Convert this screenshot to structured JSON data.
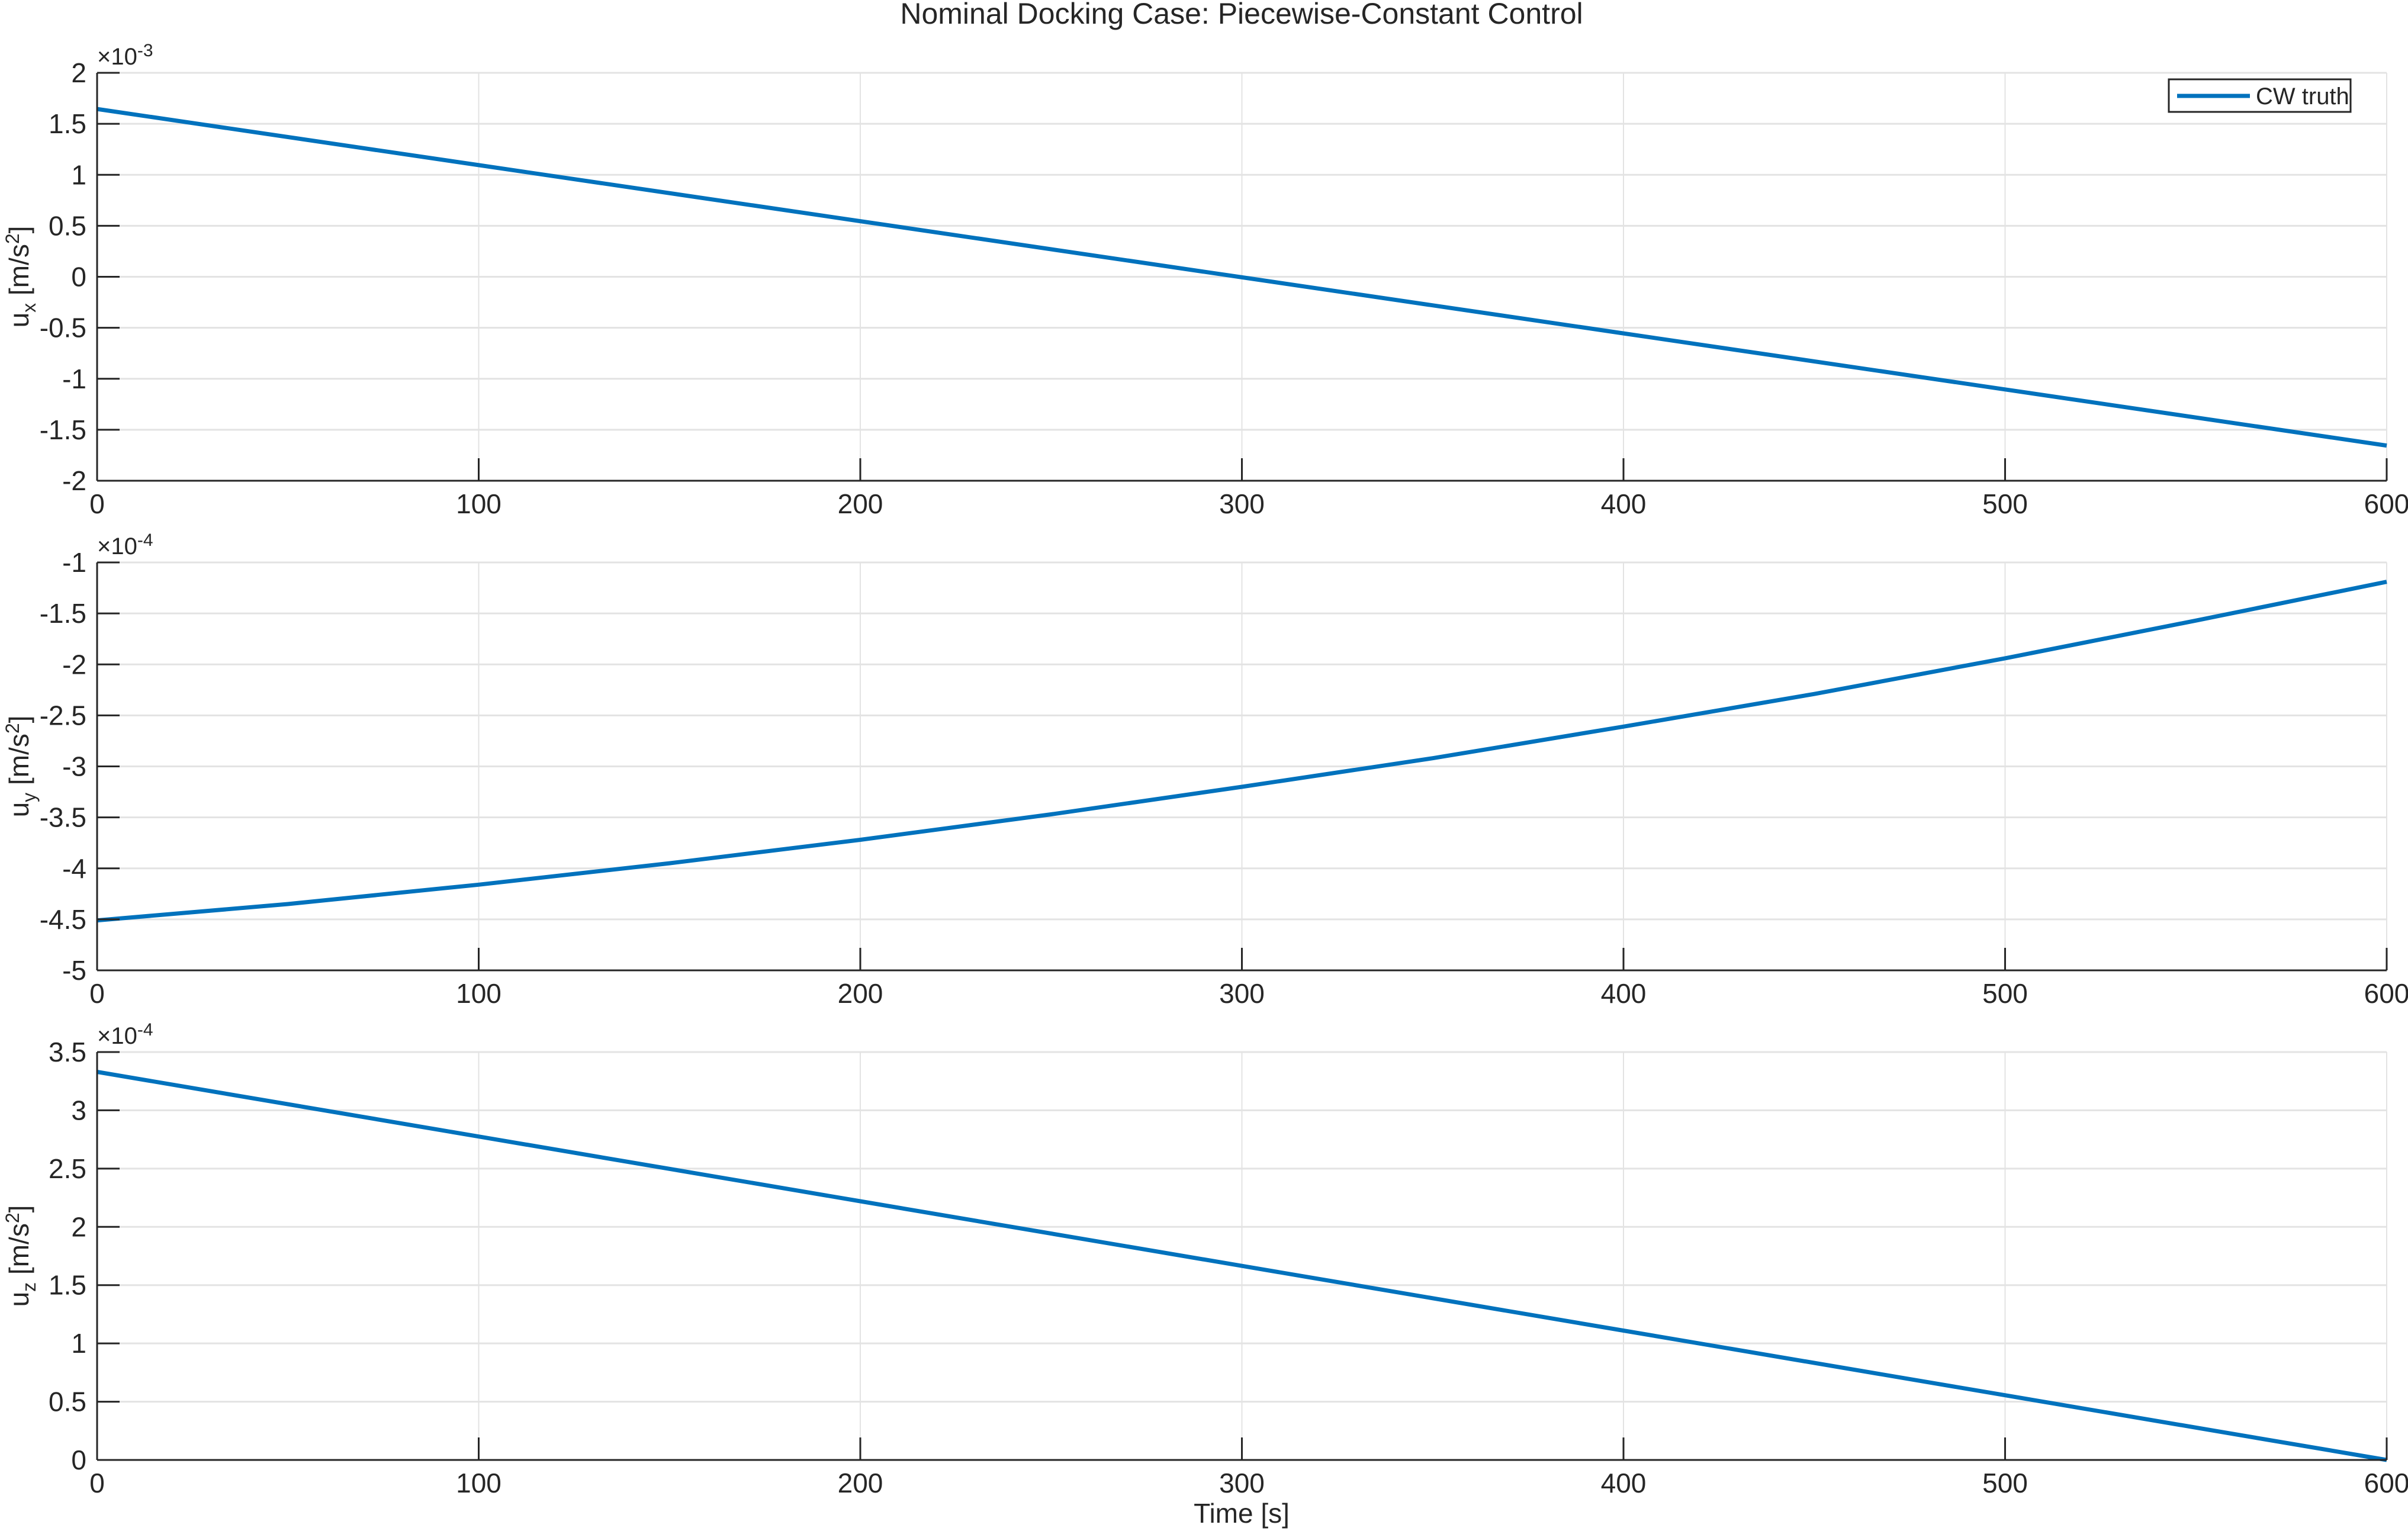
{
  "figure": {
    "title": "Nominal Docking Case: Piecewise-Constant Control",
    "xlabel": "Time [s]",
    "line_color": "#0072BD",
    "axis_color": "#262626",
    "grid_color": "#e3e3e3"
  },
  "chart_data": [
    {
      "type": "line",
      "title": "Nominal Docking Case: Piecewise-Constant Control",
      "xlabel": "",
      "ylabel_main": "u",
      "ylabel_sub": "x",
      "ylabel_unit": " [m/s",
      "ylabel_sup": "2",
      "ylabel_close": "]",
      "exponent_label": "×10",
      "exponent": "-3",
      "xlim": [
        0,
        600
      ],
      "ylim": [
        -2,
        2
      ],
      "xticks": [
        0,
        100,
        200,
        300,
        400,
        500,
        600
      ],
      "yticks": [
        -2,
        -1.5,
        -1,
        -0.5,
        0,
        0.5,
        1,
        1.5,
        2
      ],
      "ytick_labels": [
        "-2",
        "-1.5",
        "-1",
        "-0.5",
        "0",
        "0.5",
        "1",
        "1.5",
        "2"
      ],
      "grid": true,
      "legend": {
        "position": "northeast",
        "entries": [
          "CW truth"
        ]
      },
      "series": [
        {
          "name": "CW truth",
          "x": [
            0,
            100,
            200,
            300,
            400,
            500,
            600
          ],
          "values": [
            1.645,
            1.095,
            0.545,
            -0.005,
            -0.555,
            -1.105,
            -1.655
          ]
        }
      ]
    },
    {
      "type": "line",
      "ylabel_main": "u",
      "ylabel_sub": "y",
      "ylabel_unit": " [m/s",
      "ylabel_sup": "2",
      "ylabel_close": "]",
      "exponent_label": "×10",
      "exponent": "-4",
      "xlim": [
        0,
        600
      ],
      "ylim": [
        -5,
        -1
      ],
      "xticks": [
        0,
        100,
        200,
        300,
        400,
        500,
        600
      ],
      "yticks": [
        -5,
        -4.5,
        -4,
        -3.5,
        -3,
        -2.5,
        -2,
        -1.5,
        -1
      ],
      "ytick_labels": [
        "-5",
        "-4.5",
        "-4",
        "-3.5",
        "-3",
        "-2.5",
        "-2",
        "-1.5",
        "-1"
      ],
      "grid": true,
      "series": [
        {
          "name": "CW truth",
          "x": [
            0,
            50,
            100,
            150,
            200,
            250,
            300,
            350,
            400,
            450,
            500,
            550,
            600
          ],
          "values": [
            -4.51,
            -4.35,
            -4.16,
            -3.95,
            -3.72,
            -3.47,
            -3.2,
            -2.92,
            -2.61,
            -2.29,
            -1.94,
            -1.57,
            -1.19
          ]
        }
      ]
    },
    {
      "type": "line",
      "xlabel": "Time [s]",
      "ylabel_main": "u",
      "ylabel_sub": "z",
      "ylabel_unit": " [m/s",
      "ylabel_sup": "2",
      "ylabel_close": "]",
      "exponent_label": "×10",
      "exponent": "-4",
      "xlim": [
        0,
        600
      ],
      "ylim": [
        0,
        3.5
      ],
      "xticks": [
        0,
        100,
        200,
        300,
        400,
        500,
        600
      ],
      "yticks": [
        0,
        0.5,
        1,
        1.5,
        2,
        2.5,
        3,
        3.5
      ],
      "ytick_labels": [
        "0",
        "0.5",
        "1",
        "1.5",
        "2",
        "2.5",
        "3",
        "3.5"
      ],
      "grid": true,
      "series": [
        {
          "name": "CW truth",
          "x": [
            0,
            100,
            200,
            300,
            400,
            500,
            600
          ],
          "values": [
            3.33,
            2.775,
            2.22,
            1.665,
            1.11,
            0.555,
            0.0
          ]
        }
      ]
    }
  ]
}
